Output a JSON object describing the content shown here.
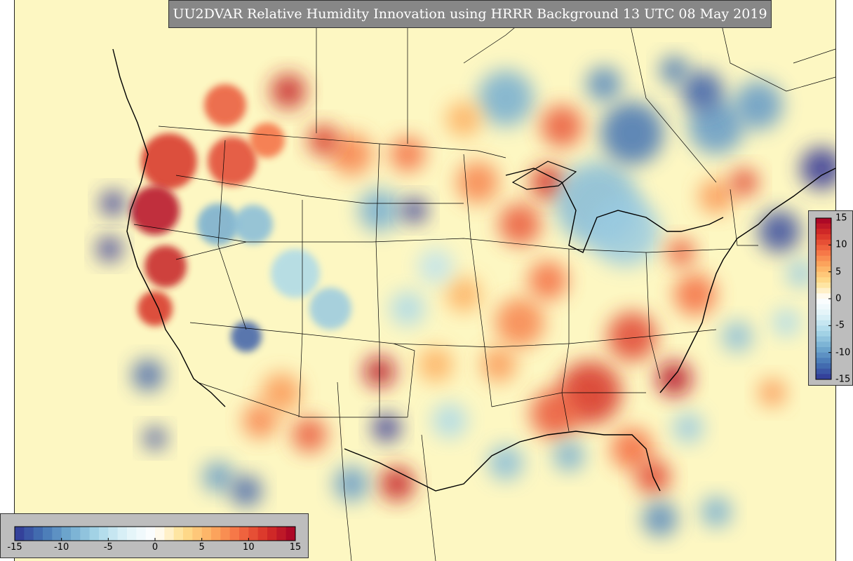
{
  "title": "UU2DVAR Relative Humidity Innovation using HRRR Background 13 UTC 08 May 2019",
  "colorbar": {
    "min": -15,
    "max": 15,
    "ticks": [
      "-15",
      "-10",
      "-5",
      "0",
      "5",
      "10",
      "15"
    ],
    "colors": [
      "#313695",
      "#4575b4",
      "#74add1",
      "#abd9e9",
      "#e0f3f8",
      "#ffffff",
      "#fee090",
      "#fdae61",
      "#f46d43",
      "#d73027",
      "#a50026"
    ]
  },
  "map": {
    "region": "Continental United States",
    "background_color": "#fdf7c2"
  }
}
